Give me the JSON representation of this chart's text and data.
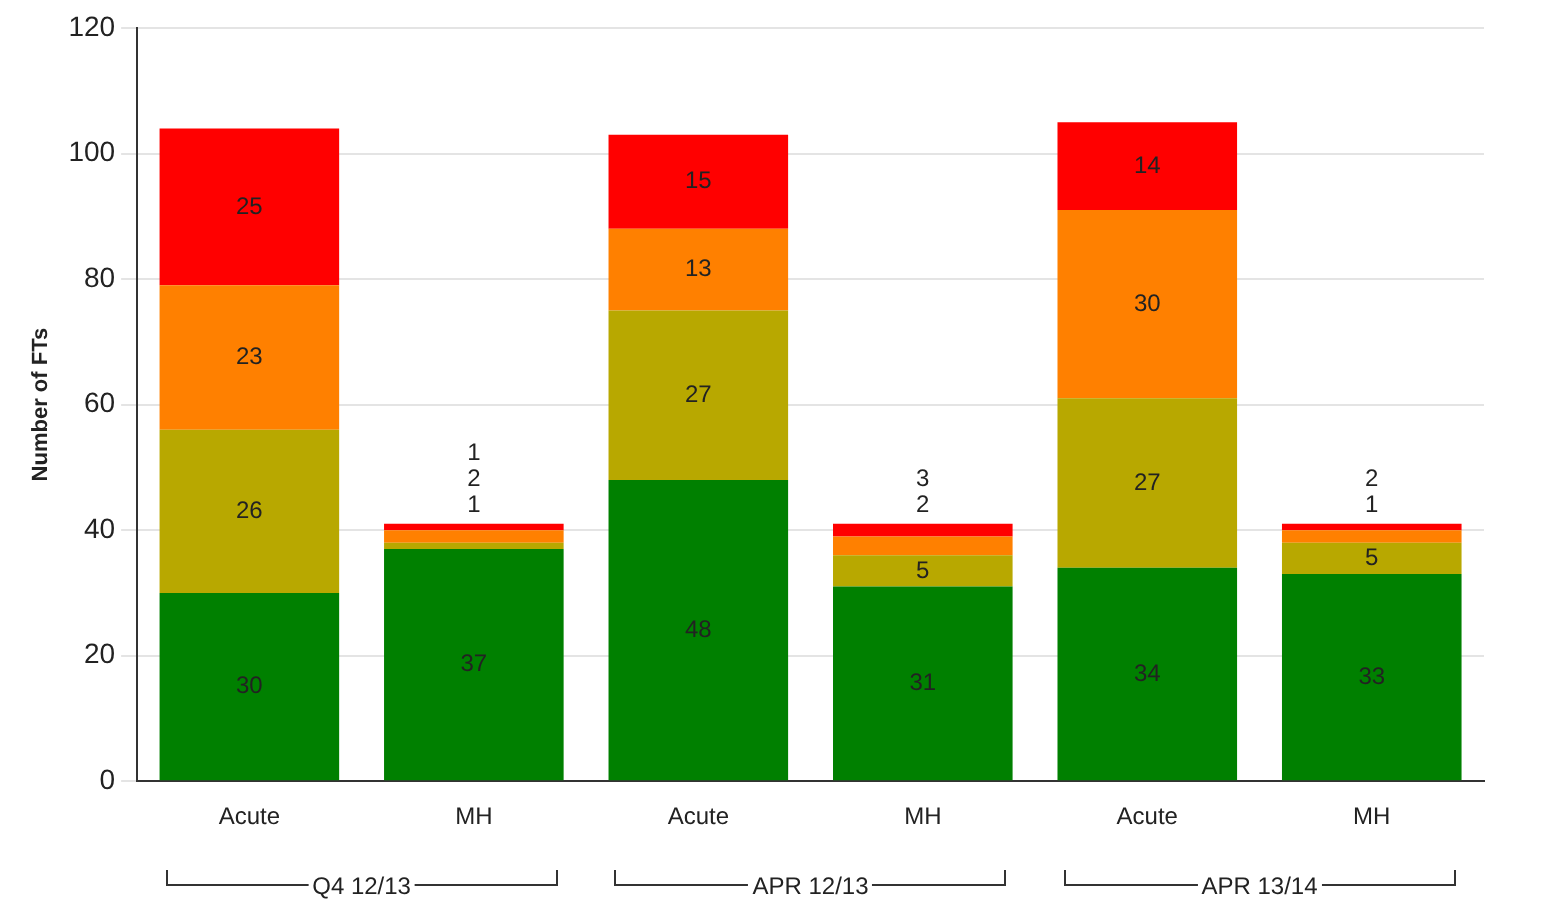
{
  "chart_data": {
    "type": "bar",
    "ylabel": "Number of FTs",
    "categories": [
      "Acute",
      "MH",
      "Acute",
      "MH",
      "Acute",
      "MH"
    ],
    "series": [
      {
        "color": "#008000",
        "values": [
          30,
          37,
          48,
          31,
          34,
          33
        ]
      },
      {
        "color": "#b8a800",
        "values": [
          26,
          1,
          27,
          5,
          27,
          5
        ]
      },
      {
        "color": "#ff8000",
        "values": [
          23,
          2,
          13,
          3,
          30,
          2
        ]
      },
      {
        "color": "#ff0000",
        "values": [
          25,
          1,
          15,
          2,
          14,
          1
        ]
      }
    ],
    "stacked": true,
    "data_labels": true,
    "grid": "y",
    "ylim": [
      0,
      120
    ],
    "yticks": [
      0,
      20,
      40,
      60,
      80,
      100,
      120
    ],
    "annotations": [
      "Q4 12/13",
      "APR 12/13",
      "APR 13/14"
    ]
  }
}
